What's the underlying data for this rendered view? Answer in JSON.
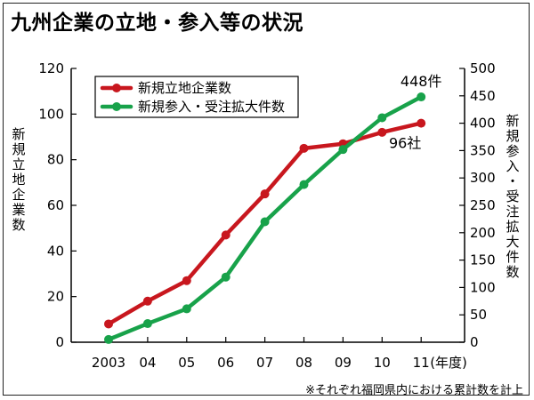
{
  "title": "九州企業の立地・参入等の状況",
  "note": "※それぞれ福岡県内における累計数を計上",
  "colors": {
    "red": "#c8171e",
    "green": "#18a24a",
    "axis": "#000000"
  },
  "chart_data": {
    "type": "line",
    "categories": [
      "2003",
      "04",
      "05",
      "06",
      "07",
      "08",
      "09",
      "10",
      "11"
    ],
    "x_unit": "(年度)",
    "left_axis": {
      "label": "新規立地企業数",
      "min": 0,
      "max": 120,
      "ticks": [
        0,
        20,
        40,
        60,
        80,
        100,
        120
      ]
    },
    "right_axis": {
      "label": "新規参入・受注拡大件数",
      "min": 0,
      "max": 500,
      "ticks": [
        0,
        50,
        100,
        150,
        200,
        250,
        300,
        350,
        400,
        450,
        500
      ]
    },
    "legend_position": "top-left",
    "grid": false,
    "series": [
      {
        "name": "新規立地企業数",
        "axis": "left",
        "color": "#c8171e",
        "values": [
          8,
          18,
          27,
          47,
          65,
          85,
          87,
          92,
          96
        ],
        "end_label": "96社"
      },
      {
        "name": "新規参入・受注拡大件数",
        "axis": "right",
        "color": "#18a24a",
        "values": [
          5,
          34,
          61,
          119,
          220,
          288,
          352,
          410,
          448
        ],
        "end_label": "448件"
      }
    ]
  }
}
